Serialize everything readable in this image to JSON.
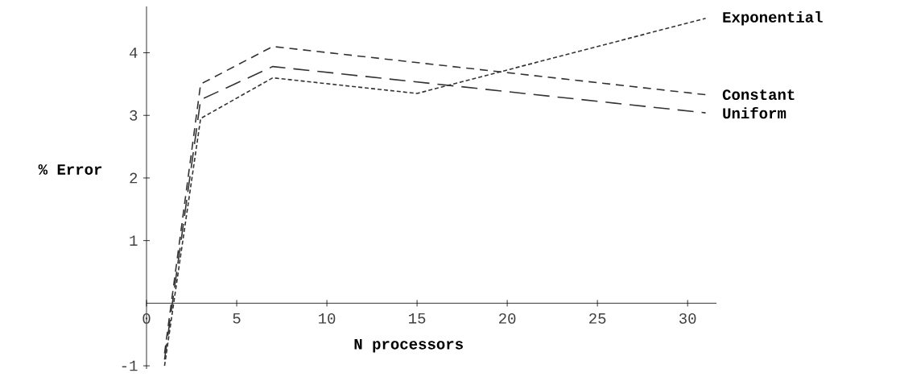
{
  "chart_data": {
    "type": "line",
    "xlabel": "N processors",
    "ylabel": "% Error",
    "x": [
      1,
      3,
      7,
      15,
      31
    ],
    "series": [
      {
        "name": "Exponential",
        "color": "#333333",
        "line_style": "dotted",
        "values": [
          -1,
          2.95,
          3.6,
          3.35,
          4.55
        ]
      },
      {
        "name": "Constant",
        "color": "#333333",
        "line_style": "dashed",
        "values": [
          -0.8,
          3.5,
          4.1,
          null,
          3.33
        ]
      },
      {
        "name": "Uniform",
        "color": "#333333",
        "line_style": "dashed",
        "values": [
          -0.9,
          3.25,
          3.78,
          null,
          3.04
        ]
      }
    ],
    "xlim": [
      0,
      31.6
    ],
    "ylim": [
      -1.05,
      4.74
    ],
    "xticks": [
      0,
      5,
      10,
      15,
      20,
      25,
      30
    ],
    "yticks": [
      -1,
      1,
      2,
      3,
      4
    ],
    "grid": false,
    "marker": "none"
  }
}
